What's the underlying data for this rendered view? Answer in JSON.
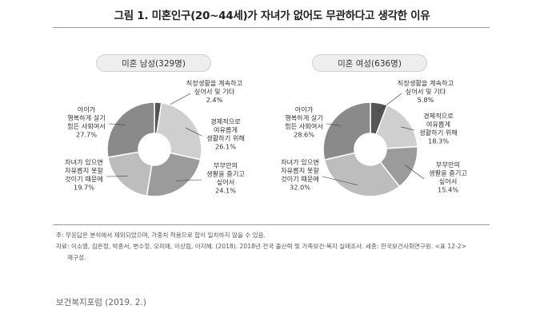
{
  "title": "그림 1. 미혼인구(20~44세)가 자녀가 없어도 무관하다고 생각한 이유",
  "chart_data": [
    {
      "type": "pie",
      "title": "미혼 남성(329명)",
      "slices": [
        {
          "lines": [
            "직장생활을 계속하고",
            "싶어서 및 기타"
          ],
          "value_label": "2.4%",
          "value": 2.4,
          "color": "#555555"
        },
        {
          "lines": [
            "경제적으로",
            "여유롭게",
            "생활하기 위해"
          ],
          "value_label": "26.1%",
          "value": 26.1,
          "color": "#cfcfcf"
        },
        {
          "lines": [
            "부부만의",
            "생활을 즐기고",
            "싶어서"
          ],
          "value_label": "24.1%",
          "value": 24.1,
          "color": "#9b9b9b"
        },
        {
          "lines": [
            "자녀가 있으면",
            "자유롭지 못할",
            "것이기 때문에"
          ],
          "value_label": "19.7%",
          "value": 19.7,
          "color": "#bdbdbd"
        },
        {
          "lines": [
            "아이가",
            "행복하게 살기",
            "힘든 사회여서"
          ],
          "value_label": "27.7%",
          "value": 27.7,
          "color": "#8a8a8a"
        }
      ]
    },
    {
      "type": "pie",
      "title": "미혼 여성(636명)",
      "slices": [
        {
          "lines": [
            "직장생활을 계속하고",
            "싶어서 및 기타"
          ],
          "value_label": "5.8%",
          "value": 5.8,
          "color": "#555555"
        },
        {
          "lines": [
            "경제적으로",
            "여유롭게",
            "생활하기 위해"
          ],
          "value_label": "18.3%",
          "value": 18.3,
          "color": "#cfcfcf"
        },
        {
          "lines": [
            "부부만의",
            "생활을 즐기고",
            "싶어서"
          ],
          "value_label": "15.4%",
          "value": 15.4,
          "color": "#9b9b9b"
        },
        {
          "lines": [
            "자녀가 있으면",
            "자유롭지 못할",
            "것이기 때문에"
          ],
          "value_label": "32.0%",
          "value": 32.0,
          "color": "#bdbdbd"
        },
        {
          "lines": [
            "아이가",
            "행복하게 살기",
            "힘든 사회여서"
          ],
          "value_label": "28.6%",
          "value": 28.6,
          "color": "#8a8a8a"
        }
      ]
    }
  ],
  "notes": [
    "주: 무응답은 분석에서 제외되었으며, 가중치 적용으로 합이 일치하지 않을 수 있음.",
    "자료: 이소영, 김은정, 박종서, 변수정, 오미애, 이상림, 이지혜. (2018). 2018년 전국 출산력 및 가족보건·복지 실태조사. 세종: 한국보건사회연구원. <표 12-2>",
    "재구성."
  ],
  "footer": "보건복지포럼 (2019. 2.)"
}
